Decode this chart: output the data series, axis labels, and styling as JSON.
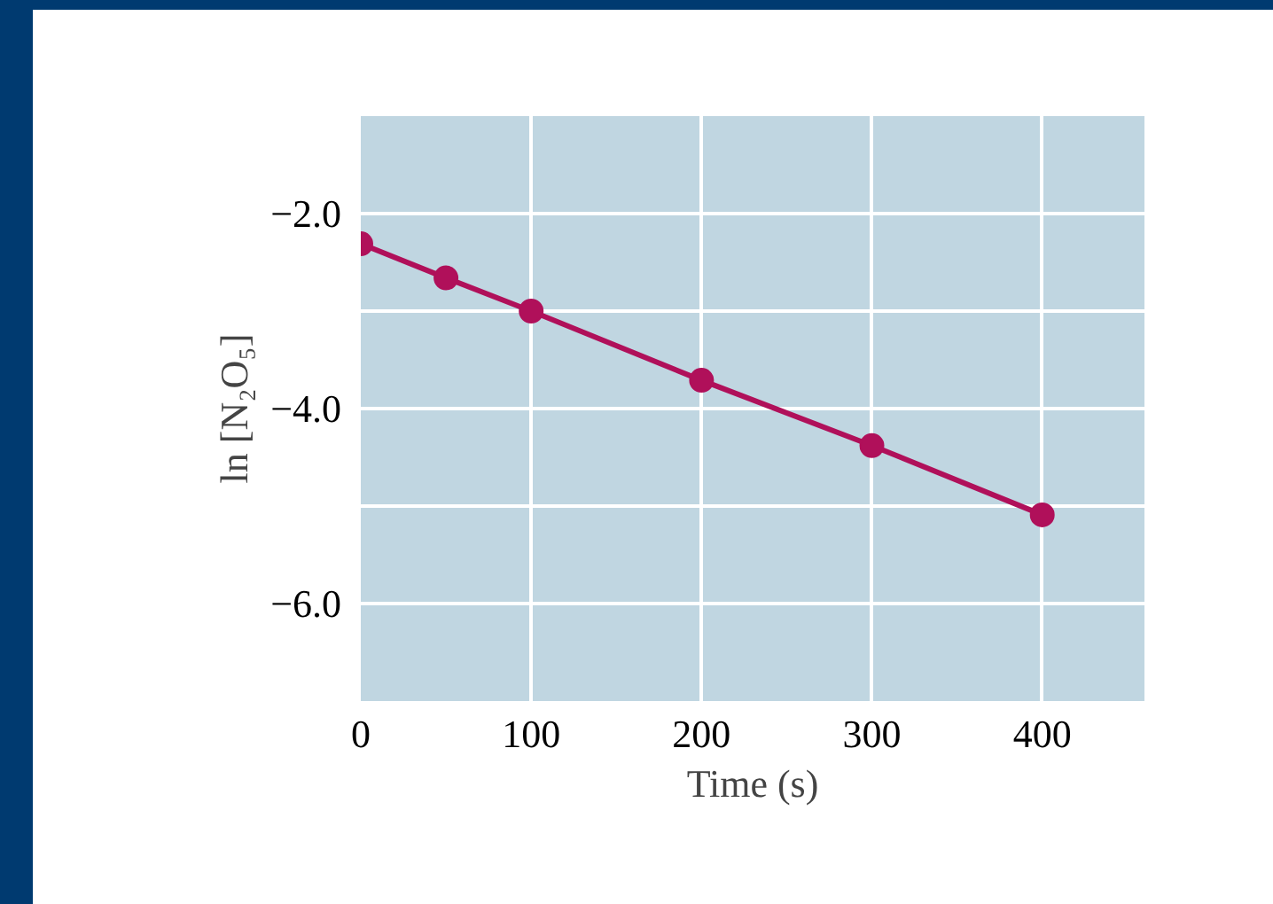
{
  "chart_data": {
    "type": "line",
    "xlabel": "Time (s)",
    "ylabel": "ln [N₂O₅]",
    "x": [
      0,
      50,
      100,
      200,
      300,
      400
    ],
    "series": [
      {
        "color": "#b0105a",
        "values": [
          -2.31,
          -2.66,
          -3.0,
          -3.71,
          -4.38,
          -5.09
        ]
      }
    ],
    "xlim": [
      0,
      460
    ],
    "ylim": [
      -7,
      -1
    ],
    "xticks": [
      0,
      100,
      200,
      300,
      400
    ],
    "yticks": [
      {
        "value": -6,
        "label": "−6.0"
      },
      {
        "value": -5,
        "label": null
      },
      {
        "value": -4,
        "label": "−4.0"
      },
      {
        "value": -3,
        "label": null
      },
      {
        "value": -2,
        "label": "−2.0"
      }
    ],
    "grid": true,
    "marker": "circle",
    "line_style": "solid"
  }
}
